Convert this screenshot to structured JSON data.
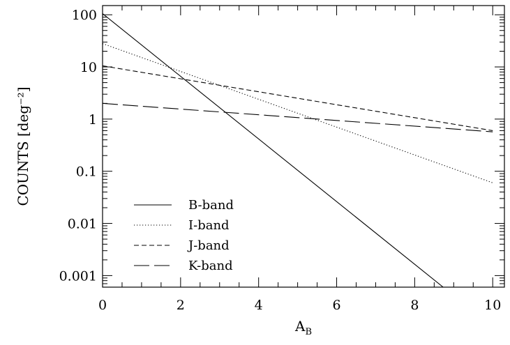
{
  "chart_data": {
    "type": "line",
    "title": "",
    "xlabel": "A",
    "xlabel_subscript": "B",
    "ylabel": "COUNTS [deg⁻²]",
    "xlim": [
      0,
      10.3
    ],
    "ylim": [
      0.0006,
      150
    ],
    "yscale": "log",
    "grid": false,
    "legend_position": "lower-left",
    "x_ticks": [
      0,
      2,
      4,
      6,
      8,
      10
    ],
    "x_tick_labels": [
      "0",
      "2",
      "4",
      "6",
      "8",
      "10"
    ],
    "y_ticks": [
      0.001,
      0.01,
      0.1,
      1,
      10,
      100
    ],
    "y_tick_labels": [
      "0.001",
      "0.01",
      "0.1",
      "1",
      "10",
      "100"
    ],
    "series": [
      {
        "name": "B-band",
        "style": "solid",
        "x": [
          0,
          8.73
        ],
        "y": [
          105,
          0.0006
        ]
      },
      {
        "name": "I-band",
        "style": "dotted",
        "x": [
          0,
          10
        ],
        "y": [
          28,
          0.06
        ]
      },
      {
        "name": "J-band",
        "style": "dashed",
        "x": [
          0,
          10
        ],
        "y": [
          10.5,
          0.6
        ]
      },
      {
        "name": "K-band",
        "style": "long-dashed",
        "x": [
          0,
          10
        ],
        "y": [
          2.0,
          0.57
        ]
      }
    ]
  }
}
